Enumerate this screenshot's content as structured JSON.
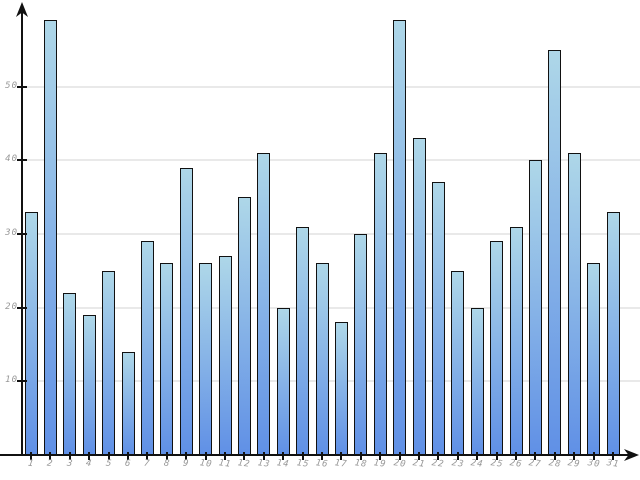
{
  "chart_data": {
    "type": "bar",
    "title": "",
    "xlabel": "",
    "ylabel": "",
    "categories": [
      "1",
      "2",
      "3",
      "4",
      "5",
      "6",
      "7",
      "8",
      "9",
      "10",
      "11",
      "12",
      "13",
      "14",
      "15",
      "16",
      "17",
      "18",
      "19",
      "20",
      "21",
      "22",
      "23",
      "24",
      "25",
      "26",
      "27",
      "28",
      "29",
      "30",
      "31"
    ],
    "values": [
      33,
      59,
      22,
      19,
      25,
      14,
      29,
      26,
      39,
      26,
      27,
      35,
      41,
      20,
      31,
      26,
      18,
      30,
      41,
      59,
      43,
      37,
      25,
      20,
      29,
      31,
      40,
      55,
      41,
      26,
      33
    ],
    "ylim": [
      0,
      60
    ],
    "yticks": [
      10,
      20,
      30,
      40,
      50
    ],
    "grid": "horizontal",
    "legend": "none",
    "colors": {
      "background": "#ffffff",
      "bar_gradient_top": "#aed7e8",
      "bar_gradient_bottom": "#6090e6",
      "bar_border": "#111111",
      "gridline": "#e9e9e9",
      "axis": "#111111",
      "tick_label": "#999999"
    }
  }
}
